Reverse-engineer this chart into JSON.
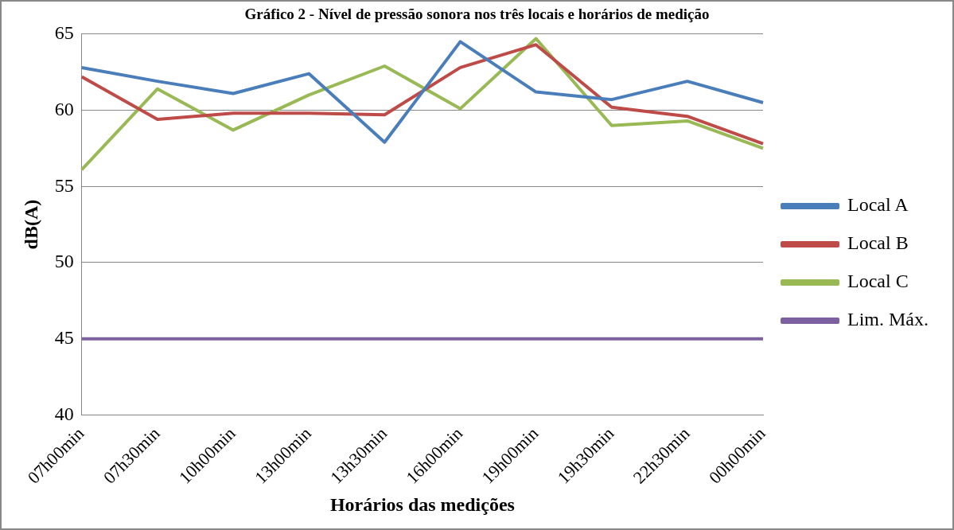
{
  "chart_data": {
    "type": "line",
    "title": "Gráfico 2 - Nível de pressão sonora nos três locais e horários de medição",
    "xlabel": "Horários das medições",
    "ylabel": "dB(A)",
    "categories": [
      "07h00min",
      "07h30min",
      "10h00min",
      "13h00min",
      "13h30min",
      "16h00min",
      "19h00min",
      "19h30min",
      "22h30min",
      "00h00min"
    ],
    "series": [
      {
        "name": "Local A",
        "color": "#4a7ebb",
        "values": [
          62.8,
          61.9,
          61.1,
          62.4,
          57.9,
          64.5,
          61.2,
          60.7,
          61.9,
          60.5
        ]
      },
      {
        "name": "Local B",
        "color": "#be4b48",
        "values": [
          62.2,
          59.4,
          59.8,
          59.8,
          59.7,
          62.8,
          64.3,
          60.2,
          59.6,
          57.8
        ]
      },
      {
        "name": "Local C",
        "color": "#98b954",
        "values": [
          56.1,
          61.4,
          58.7,
          61.0,
          62.9,
          60.1,
          64.7,
          59.0,
          59.3,
          57.5
        ]
      },
      {
        "name": "Lim. Máx.",
        "color": "#7d60a0",
        "values": [
          45,
          45,
          45,
          45,
          45,
          45,
          45,
          45,
          45,
          45
        ]
      }
    ],
    "ylim": [
      40,
      65
    ],
    "yticks": [
      40,
      45,
      50,
      55,
      60,
      65
    ],
    "grid": "y",
    "legend": "right",
    "marker": "none",
    "line_style": "solid"
  }
}
